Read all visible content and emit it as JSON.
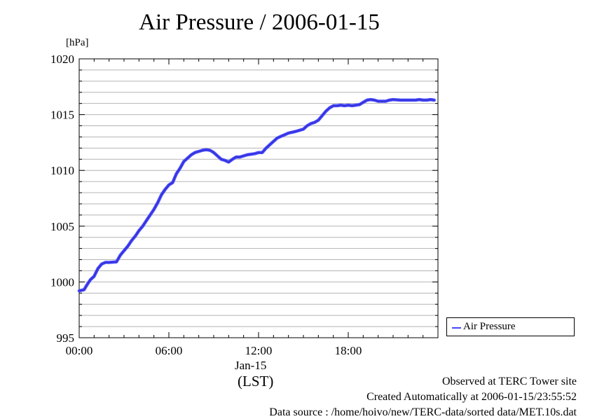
{
  "chart_data": {
    "type": "line",
    "title": "Air Pressure / 2006-01-15",
    "ylabel": "[hPa]",
    "xlabel": "(LST)",
    "x_date_label": "Jan-15",
    "ylim": [
      995,
      1020
    ],
    "xlim": [
      0,
      24
    ],
    "yticks": [
      995,
      1000,
      1005,
      1010,
      1015,
      1020
    ],
    "ytick_labels": [
      "995",
      "1000",
      "1005",
      "1010",
      "1015",
      "1020"
    ],
    "xticks": [
      0,
      6,
      12,
      18
    ],
    "xtick_labels": [
      "00:00",
      "06:00",
      "12:00",
      "18:00"
    ],
    "grid": true,
    "legend_position": "right",
    "series": [
      {
        "name": "Air Pressure",
        "color": "#4646ff",
        "x": [
          0.0,
          0.33,
          0.5,
          0.75,
          1.0,
          1.25,
          1.5,
          1.75,
          2.0,
          2.5,
          2.75,
          3.0,
          3.25,
          3.5,
          3.75,
          4.0,
          4.25,
          4.5,
          4.75,
          5.0,
          5.25,
          5.5,
          5.75,
          6.0,
          6.25,
          6.5,
          6.75,
          7.0,
          7.25,
          7.5,
          7.75,
          8.0,
          8.25,
          8.5,
          8.75,
          9.0,
          9.25,
          9.5,
          9.75,
          10.0,
          10.25,
          10.5,
          10.75,
          11.0,
          11.25,
          11.5,
          11.75,
          12.0,
          12.25,
          12.5,
          12.75,
          13.0,
          13.25,
          13.5,
          13.75,
          14.0,
          14.5,
          15.0,
          15.25,
          15.5,
          15.75,
          16.0,
          16.25,
          16.5,
          16.75,
          17.0,
          17.25,
          17.5,
          17.75,
          18.0,
          18.25,
          18.5,
          18.75,
          19.0,
          19.25,
          19.5,
          19.75,
          20.0,
          20.25,
          20.5,
          20.75,
          21.0,
          21.5,
          22.0,
          22.5,
          22.75,
          23.0,
          23.25,
          23.5,
          23.75
        ],
        "values": [
          999.2,
          999.3,
          999.7,
          1000.2,
          1000.5,
          1001.2,
          1001.6,
          1001.75,
          1001.75,
          1001.8,
          1002.4,
          1002.8,
          1003.2,
          1003.7,
          1004.1,
          1004.6,
          1005.0,
          1005.5,
          1006.0,
          1006.5,
          1007.1,
          1007.8,
          1008.3,
          1008.7,
          1008.9,
          1009.7,
          1010.2,
          1010.8,
          1011.1,
          1011.4,
          1011.6,
          1011.7,
          1011.8,
          1011.85,
          1011.8,
          1011.6,
          1011.3,
          1011.0,
          1010.9,
          1010.75,
          1011.0,
          1011.2,
          1011.2,
          1011.3,
          1011.4,
          1011.45,
          1011.5,
          1011.6,
          1011.6,
          1012.0,
          1012.3,
          1012.6,
          1012.9,
          1013.05,
          1013.2,
          1013.35,
          1013.5,
          1013.7,
          1014.0,
          1014.2,
          1014.3,
          1014.5,
          1014.9,
          1015.3,
          1015.6,
          1015.8,
          1015.8,
          1015.85,
          1015.8,
          1015.85,
          1015.8,
          1015.85,
          1015.9,
          1016.1,
          1016.3,
          1016.35,
          1016.3,
          1016.2,
          1016.2,
          1016.2,
          1016.3,
          1016.35,
          1016.3,
          1016.3,
          1016.3,
          1016.35,
          1016.3,
          1016.3,
          1016.35,
          1016.3
        ]
      }
    ]
  },
  "footer": {
    "line1": "Observed at TERC Tower site",
    "line2": "Created Automatically at 2006-01-15/23:55:52",
    "line3": "Data source : /home/hoivo/new/TERC-data/sorted  data/MET.10s.dat"
  }
}
